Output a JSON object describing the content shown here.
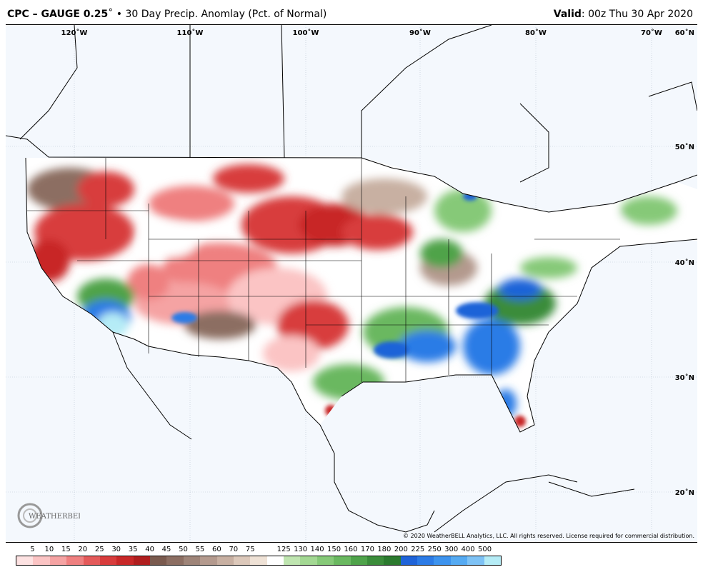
{
  "header": {
    "product": "CPC – GAUGE 0.25",
    "degree_mark": "˚",
    "subtitle": "• 30 Day Precip. Anomlay (Pct. of Normal)",
    "valid_label": "Valid",
    "valid_value": ": 00z Thu 30 Apr 2020"
  },
  "longitude_labels": [
    "120˚W",
    "110˚W",
    "100˚W",
    "90˚W",
    "80˚W",
    "70˚W",
    "60˚N"
  ],
  "latitude_labels": [
    "50˚N",
    "40˚N",
    "30˚N",
    "20˚N"
  ],
  "copyright": "© 2020 WeatherBELL Analytics, LLC. All rights reserved. License required for commercial distribution.",
  "logo": {
    "text": "WEATHERBELL",
    "icon": "weatherbell-logo-icon"
  },
  "colorbar": {
    "labels": [
      "5",
      "10",
      "15",
      "20",
      "25",
      "30",
      "35",
      "40",
      "45",
      "50",
      "55",
      "60",
      "70",
      "75",
      "125",
      "130",
      "140",
      "150",
      "160",
      "170",
      "180",
      "200",
      "225",
      "250",
      "300",
      "400",
      "500"
    ],
    "colors": [
      "#fde2e2",
      "#fbc4c4",
      "#f5a3a3",
      "#ef8080",
      "#e45a5a",
      "#d83c3c",
      "#c82828",
      "#b01e1e",
      "#7a5a4e",
      "#8c6e62",
      "#9e8478",
      "#b49a8e",
      "#c8b0a2",
      "#dcc8ba",
      "#efe2d6",
      "#ffffff",
      "#bfe5b0",
      "#a3d893",
      "#86c978",
      "#6ab860",
      "#4fa34a",
      "#3b8c3a",
      "#2b7a2e",
      "#1f63d8",
      "#2c7be6",
      "#3d93ee",
      "#55aaf2",
      "#7ec2f5",
      "#b5ecf6"
    ]
  }
}
